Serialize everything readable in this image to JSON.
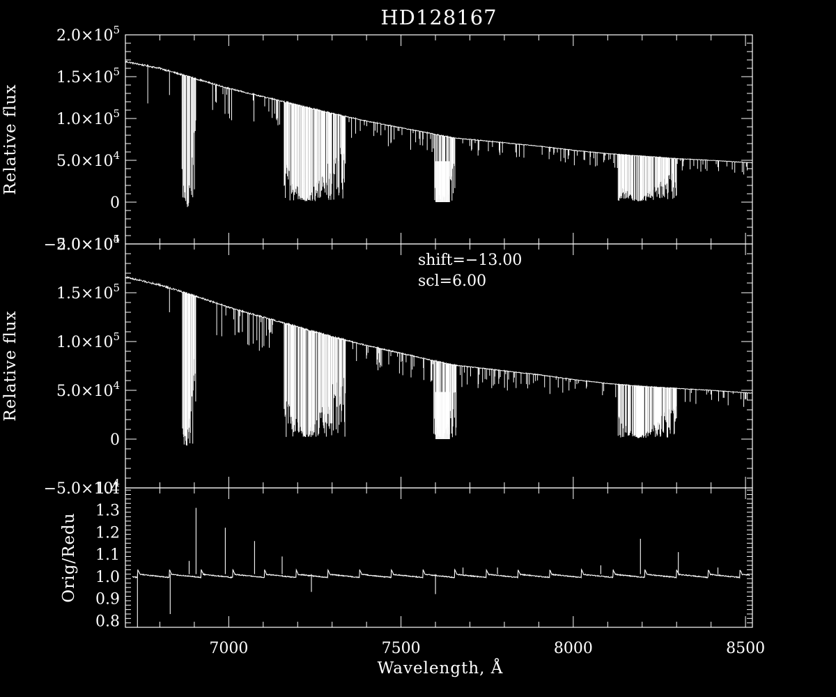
{
  "chart_data": [
    {
      "type": "line",
      "panel": "top",
      "title": "HD128167",
      "ylabel": "Relative flux",
      "ylim": [
        -50000,
        200000
      ],
      "xlim": [
        6700,
        8520
      ],
      "xticks_labeled": false,
      "ytick_labels": [
        {
          "value": 200000,
          "mantissa": "2.0",
          "exp": "5"
        },
        {
          "value": 150000,
          "mantissa": "1.5",
          "exp": "5"
        },
        {
          "value": 100000,
          "mantissa": "1.0",
          "exp": "5"
        },
        {
          "value": 50000,
          "mantissa": "5.0",
          "exp": "4"
        },
        {
          "value": 0,
          "mantissa": "0",
          "exp": ""
        },
        {
          "value": -50000,
          "mantissa": "−5.0",
          "exp": "4"
        }
      ],
      "continuum": [
        [
          6700,
          168000
        ],
        [
          6800,
          160000
        ],
        [
          6900,
          148000
        ],
        [
          7000,
          136000
        ],
        [
          7100,
          126000
        ],
        [
          7200,
          116000
        ],
        [
          7300,
          106000
        ],
        [
          7400,
          97000
        ],
        [
          7500,
          89000
        ],
        [
          7600,
          81000
        ],
        [
          7650,
          77000
        ],
        [
          7700,
          75000
        ],
        [
          7800,
          71000
        ],
        [
          7900,
          67000
        ],
        [
          8000,
          62000
        ],
        [
          8100,
          58000
        ],
        [
          8200,
          55000
        ],
        [
          8300,
          52000
        ],
        [
          8400,
          50000
        ],
        [
          8520,
          47000
        ]
      ],
      "absorption_bands": [
        {
          "from": 6862,
          "to": 6905,
          "min_flux": -6000
        },
        {
          "from": 7160,
          "to": 7340,
          "min_flux": 1000
        },
        {
          "from": 7594,
          "to": 7660,
          "min_flux": 0
        },
        {
          "from": 8130,
          "to": 8300,
          "min_flux": 1000
        }
      ],
      "absorption_lines": [
        [
          6765,
          118000
        ],
        [
          6828,
          128000
        ],
        [
          7590,
          60000
        ],
        [
          7785,
          62000
        ],
        [
          8495,
          33000
        ]
      ]
    },
    {
      "type": "line",
      "panel": "middle",
      "ylabel": "Relative flux",
      "ylim": [
        -50000,
        200000
      ],
      "xlim": [
        6700,
        8520
      ],
      "xticks_labeled": false,
      "annotations": [
        "shift=−13.00",
        "scl=6.00"
      ],
      "ytick_labels": [
        {
          "value": 200000,
          "mantissa": "2.0",
          "exp": "5"
        },
        {
          "value": 150000,
          "mantissa": "1.5",
          "exp": "5"
        },
        {
          "value": 100000,
          "mantissa": "1.0",
          "exp": "5"
        },
        {
          "value": 50000,
          "mantissa": "5.0",
          "exp": "4"
        },
        {
          "value": 0,
          "mantissa": "0",
          "exp": ""
        },
        {
          "value": -50000,
          "mantissa": "−5.0",
          "exp": "4"
        }
      ],
      "continuum": [
        [
          6700,
          166000
        ],
        [
          6800,
          158000
        ],
        [
          6900,
          147000
        ],
        [
          7000,
          135000
        ],
        [
          7100,
          125000
        ],
        [
          7200,
          115000
        ],
        [
          7300,
          105000
        ],
        [
          7400,
          96000
        ],
        [
          7500,
          88000
        ],
        [
          7600,
          80000
        ],
        [
          7650,
          76000
        ],
        [
          7700,
          74000
        ],
        [
          7800,
          70000
        ],
        [
          7900,
          66000
        ],
        [
          8000,
          61000
        ],
        [
          8100,
          57000
        ],
        [
          8200,
          54000
        ],
        [
          8300,
          52000
        ],
        [
          8400,
          50000
        ],
        [
          8520,
          47000
        ]
      ],
      "absorption_bands": [
        {
          "from": 6862,
          "to": 6905,
          "min_flux": -7000
        },
        {
          "from": 7160,
          "to": 7340,
          "min_flux": 2000
        },
        {
          "from": 7594,
          "to": 7660,
          "min_flux": 0
        },
        {
          "from": 8130,
          "to": 8300,
          "min_flux": 1000
        }
      ],
      "absorption_lines": [
        [
          6828,
          130000
        ],
        [
          7590,
          60000
        ],
        [
          7785,
          62000
        ],
        [
          8495,
          33000
        ]
      ]
    },
    {
      "type": "line",
      "panel": "bottom",
      "xlabel": "Wavelength, Å",
      "ylabel": "Orig/Redu",
      "xlim": [
        6700,
        8520
      ],
      "ylim": [
        0.77,
        1.4
      ],
      "xtick_labels": [
        {
          "value": 7000,
          "label": "7000"
        },
        {
          "value": 7500,
          "label": "7500"
        },
        {
          "value": 8000,
          "label": "8000"
        },
        {
          "value": 8500,
          "label": "8500"
        }
      ],
      "ytick_labels": [
        {
          "value": 1.4,
          "label": "1.4"
        },
        {
          "value": 1.3,
          "label": "1.3"
        },
        {
          "value": 1.2,
          "label": "1.2"
        },
        {
          "value": 1.1,
          "label": "1.1"
        },
        {
          "value": 1.0,
          "label": "1.0"
        },
        {
          "value": 0.9,
          "label": "0.9"
        },
        {
          "value": 0.8,
          "label": "0.8"
        }
      ],
      "baseline": 1.01,
      "period_angstrom": 92,
      "periodic_start": 6828,
      "spikes": [
        [
          6735,
          0.75
        ],
        [
          6830,
          0.83
        ],
        [
          6885,
          1.07
        ],
        [
          6905,
          1.31
        ],
        [
          6990,
          1.22
        ],
        [
          7075,
          1.16
        ],
        [
          7155,
          1.09
        ],
        [
          7240,
          0.93
        ],
        [
          7600,
          0.92
        ],
        [
          7680,
          1.04
        ],
        [
          7780,
          1.04
        ],
        [
          8080,
          1.05
        ],
        [
          8195,
          1.17
        ],
        [
          8305,
          1.11
        ],
        [
          8420,
          1.04
        ]
      ]
    }
  ]
}
